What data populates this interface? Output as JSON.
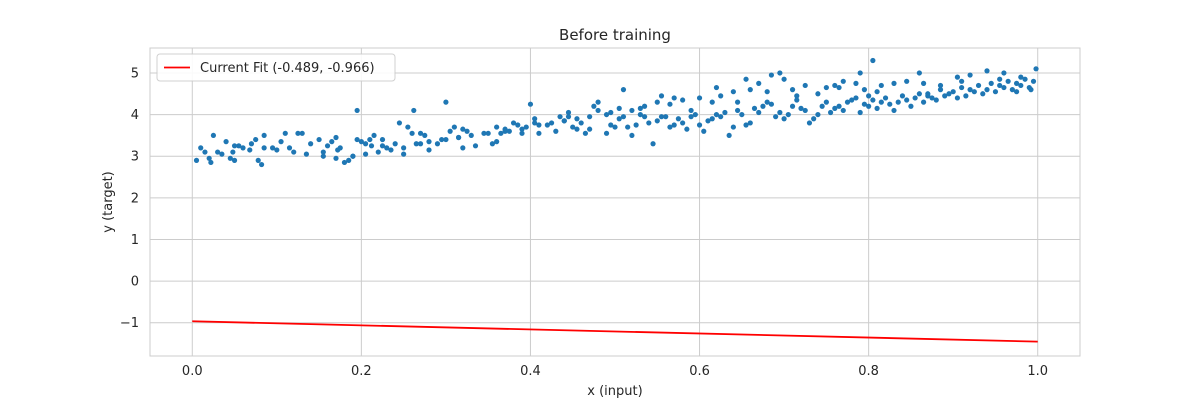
{
  "chart_data": {
    "type": "scatter",
    "title": "Before training",
    "xlabel": "x (input)",
    "ylabel": "y (target)",
    "xlim": [
      -0.05,
      1.05
    ],
    "ylim": [
      -1.8,
      5.6
    ],
    "xticks": [
      0.0,
      0.2,
      0.4,
      0.6,
      0.8,
      1.0
    ],
    "xtick_labels": [
      "0.0",
      "0.2",
      "0.4",
      "0.6",
      "0.8",
      "1.0"
    ],
    "yticks": [
      -1,
      0,
      1,
      2,
      3,
      4,
      5
    ],
    "ytick_labels": [
      "−1",
      "0",
      "1",
      "2",
      "3",
      "4",
      "5"
    ],
    "grid": true,
    "legend_position": "top-left",
    "scatter": {
      "color": "#1f77b4",
      "points": [
        [
          0.005,
          2.9
        ],
        [
          0.01,
          3.2
        ],
        [
          0.015,
          3.1
        ],
        [
          0.02,
          2.95
        ],
        [
          0.022,
          2.85
        ],
        [
          0.025,
          3.5
        ],
        [
          0.035,
          3.05
        ],
        [
          0.04,
          3.35
        ],
        [
          0.045,
          2.95
        ],
        [
          0.048,
          3.1
        ],
        [
          0.05,
          2.9
        ],
        [
          0.055,
          3.25
        ],
        [
          0.06,
          3.2
        ],
        [
          0.07,
          3.3
        ],
        [
          0.075,
          3.4
        ],
        [
          0.078,
          2.9
        ],
        [
          0.082,
          2.8
        ],
        [
          0.085,
          3.5
        ],
        [
          0.095,
          3.2
        ],
        [
          0.105,
          3.35
        ],
        [
          0.115,
          3.2
        ],
        [
          0.125,
          3.55
        ],
        [
          0.13,
          3.55
        ],
        [
          0.14,
          3.3
        ],
        [
          0.15,
          3.4
        ],
        [
          0.155,
          3.1
        ],
        [
          0.16,
          3.25
        ],
        [
          0.165,
          3.35
        ],
        [
          0.17,
          3.45
        ],
        [
          0.172,
          3.15
        ],
        [
          0.175,
          3.2
        ],
        [
          0.18,
          2.85
        ],
        [
          0.185,
          2.9
        ],
        [
          0.19,
          3.0
        ],
        [
          0.195,
          3.4
        ],
        [
          0.2,
          3.35
        ],
        [
          0.205,
          3.3
        ],
        [
          0.21,
          3.4
        ],
        [
          0.212,
          3.25
        ],
        [
          0.215,
          3.5
        ],
        [
          0.225,
          3.25
        ],
        [
          0.23,
          3.2
        ],
        [
          0.24,
          3.3
        ],
        [
          0.245,
          3.8
        ],
        [
          0.25,
          3.05
        ],
        [
          0.255,
          3.7
        ],
        [
          0.26,
          3.55
        ],
        [
          0.262,
          4.1
        ],
        [
          0.27,
          3.3
        ],
        [
          0.275,
          3.5
        ],
        [
          0.28,
          3.15
        ],
        [
          0.29,
          3.3
        ],
        [
          0.3,
          3.4
        ],
        [
          0.305,
          3.6
        ],
        [
          0.31,
          3.7
        ],
        [
          0.315,
          3.45
        ],
        [
          0.32,
          3.2
        ],
        [
          0.325,
          3.6
        ],
        [
          0.335,
          3.25
        ],
        [
          0.345,
          3.55
        ],
        [
          0.355,
          3.3
        ],
        [
          0.36,
          3.35
        ],
        [
          0.365,
          3.55
        ],
        [
          0.37,
          3.65
        ],
        [
          0.375,
          3.6
        ],
        [
          0.38,
          3.8
        ],
        [
          0.385,
          3.75
        ],
        [
          0.39,
          3.55
        ],
        [
          0.395,
          3.7
        ],
        [
          0.4,
          4.25
        ],
        [
          0.405,
          3.8
        ],
        [
          0.41,
          3.55
        ],
        [
          0.42,
          3.75
        ],
        [
          0.43,
          3.6
        ],
        [
          0.435,
          3.95
        ],
        [
          0.44,
          3.85
        ],
        [
          0.445,
          4.05
        ],
        [
          0.45,
          3.7
        ],
        [
          0.455,
          3.65
        ],
        [
          0.46,
          3.8
        ],
        [
          0.465,
          3.55
        ],
        [
          0.47,
          3.65
        ],
        [
          0.48,
          4.1
        ],
        [
          0.49,
          3.55
        ],
        [
          0.495,
          3.75
        ],
        [
          0.5,
          3.7
        ],
        [
          0.505,
          3.9
        ],
        [
          0.51,
          3.95
        ],
        [
          0.515,
          3.7
        ],
        [
          0.52,
          3.5
        ],
        [
          0.525,
          3.75
        ],
        [
          0.53,
          4.0
        ],
        [
          0.535,
          3.95
        ],
        [
          0.54,
          3.8
        ],
        [
          0.545,
          3.3
        ],
        [
          0.55,
          3.85
        ],
        [
          0.555,
          3.95
        ],
        [
          0.56,
          3.95
        ],
        [
          0.565,
          3.7
        ],
        [
          0.57,
          3.75
        ],
        [
          0.575,
          3.9
        ],
        [
          0.58,
          3.8
        ],
        [
          0.585,
          3.65
        ],
        [
          0.59,
          3.95
        ],
        [
          0.595,
          4.0
        ],
        [
          0.6,
          3.75
        ],
        [
          0.605,
          3.6
        ],
        [
          0.61,
          3.85
        ],
        [
          0.615,
          3.9
        ],
        [
          0.62,
          4.0
        ],
        [
          0.625,
          3.95
        ],
        [
          0.63,
          4.05
        ],
        [
          0.635,
          3.5
        ],
        [
          0.64,
          3.7
        ],
        [
          0.645,
          4.1
        ],
        [
          0.65,
          4.0
        ],
        [
          0.655,
          3.75
        ],
        [
          0.66,
          3.8
        ],
        [
          0.665,
          4.15
        ],
        [
          0.67,
          4.05
        ],
        [
          0.675,
          4.2
        ],
        [
          0.68,
          4.3
        ],
        [
          0.685,
          4.25
        ],
        [
          0.69,
          3.95
        ],
        [
          0.695,
          4.05
        ],
        [
          0.7,
          3.9
        ],
        [
          0.705,
          4.0
        ],
        [
          0.71,
          4.2
        ],
        [
          0.715,
          4.35
        ],
        [
          0.72,
          4.15
        ],
        [
          0.725,
          4.1
        ],
        [
          0.73,
          3.8
        ],
        [
          0.735,
          3.9
        ],
        [
          0.74,
          4.0
        ],
        [
          0.745,
          4.2
        ],
        [
          0.75,
          4.3
        ],
        [
          0.755,
          4.05
        ],
        [
          0.76,
          4.15
        ],
        [
          0.765,
          4.2
        ],
        [
          0.77,
          4.1
        ],
        [
          0.775,
          4.3
        ],
        [
          0.78,
          4.35
        ],
        [
          0.785,
          4.4
        ],
        [
          0.79,
          4.05
        ],
        [
          0.795,
          4.25
        ],
        [
          0.8,
          4.2
        ],
        [
          0.805,
          4.35
        ],
        [
          0.81,
          4.15
        ],
        [
          0.815,
          4.3
        ],
        [
          0.82,
          4.4
        ],
        [
          0.825,
          4.25
        ],
        [
          0.83,
          4.1
        ],
        [
          0.835,
          4.3
        ],
        [
          0.84,
          4.45
        ],
        [
          0.845,
          4.35
        ],
        [
          0.85,
          4.2
        ],
        [
          0.855,
          4.4
        ],
        [
          0.86,
          4.5
        ],
        [
          0.865,
          4.3
        ],
        [
          0.87,
          4.45
        ],
        [
          0.875,
          4.4
        ],
        [
          0.88,
          4.35
        ],
        [
          0.885,
          4.6
        ],
        [
          0.89,
          4.45
        ],
        [
          0.895,
          4.5
        ],
        [
          0.9,
          4.55
        ],
        [
          0.905,
          4.4
        ],
        [
          0.91,
          4.65
        ],
        [
          0.915,
          4.45
        ],
        [
          0.92,
          4.6
        ],
        [
          0.925,
          4.55
        ],
        [
          0.93,
          4.7
        ],
        [
          0.935,
          4.5
        ],
        [
          0.94,
          4.6
        ],
        [
          0.945,
          4.75
        ],
        [
          0.95,
          4.55
        ],
        [
          0.955,
          4.7
        ],
        [
          0.96,
          4.65
        ],
        [
          0.965,
          4.8
        ],
        [
          0.97,
          4.6
        ],
        [
          0.975,
          4.75
        ],
        [
          0.98,
          4.7
        ],
        [
          0.985,
          4.85
        ],
        [
          0.99,
          4.65
        ],
        [
          0.995,
          4.8
        ],
        [
          0.998,
          5.1
        ],
        [
          0.992,
          4.6
        ],
        [
          0.975,
          4.55
        ],
        [
          0.96,
          5.0
        ],
        [
          0.94,
          5.05
        ],
        [
          0.92,
          4.95
        ],
        [
          0.905,
          4.9
        ],
        [
          0.885,
          4.7
        ],
        [
          0.87,
          4.5
        ],
        [
          0.86,
          5.0
        ],
        [
          0.845,
          4.8
        ],
        [
          0.83,
          4.75
        ],
        [
          0.815,
          4.7
        ],
        [
          0.8,
          4.45
        ],
        [
          0.795,
          4.6
        ],
        [
          0.785,
          4.75
        ],
        [
          0.77,
          4.8
        ],
        [
          0.76,
          4.7
        ],
        [
          0.75,
          4.65
        ],
        [
          0.74,
          4.5
        ],
        [
          0.725,
          4.7
        ],
        [
          0.71,
          4.6
        ],
        [
          0.7,
          4.85
        ],
        [
          0.695,
          5.0
        ],
        [
          0.685,
          4.95
        ],
        [
          0.67,
          4.75
        ],
        [
          0.66,
          4.6
        ],
        [
          0.64,
          4.55
        ],
        [
          0.625,
          4.45
        ],
        [
          0.615,
          4.3
        ],
        [
          0.6,
          4.4
        ],
        [
          0.58,
          4.35
        ],
        [
          0.565,
          4.25
        ],
        [
          0.55,
          4.3
        ],
        [
          0.535,
          4.2
        ],
        [
          0.52,
          4.1
        ],
        [
          0.505,
          4.15
        ],
        [
          0.49,
          4.0
        ],
        [
          0.47,
          3.95
        ],
        [
          0.455,
          3.9
        ],
        [
          0.44,
          3.85
        ],
        [
          0.425,
          3.8
        ],
        [
          0.41,
          3.75
        ],
        [
          0.39,
          3.65
        ],
        [
          0.37,
          3.6
        ],
        [
          0.35,
          3.55
        ],
        [
          0.33,
          3.5
        ],
        [
          0.315,
          3.45
        ],
        [
          0.295,
          3.4
        ],
        [
          0.28,
          3.35
        ],
        [
          0.265,
          3.3
        ],
        [
          0.25,
          3.2
        ],
        [
          0.235,
          3.15
        ],
        [
          0.22,
          3.1
        ],
        [
          0.205,
          3.05
        ],
        [
          0.19,
          3.0
        ],
        [
          0.17,
          2.95
        ],
        [
          0.155,
          3.0
        ],
        [
          0.135,
          3.05
        ],
        [
          0.12,
          3.1
        ],
        [
          0.1,
          3.15
        ],
        [
          0.085,
          3.2
        ],
        [
          0.068,
          3.15
        ],
        [
          0.05,
          3.25
        ],
        [
          0.03,
          3.1
        ],
        [
          0.805,
          5.3
        ],
        [
          0.79,
          5.0
        ],
        [
          0.655,
          4.85
        ],
        [
          0.62,
          4.65
        ],
        [
          0.57,
          4.4
        ],
        [
          0.51,
          4.6
        ],
        [
          0.48,
          4.3
        ],
        [
          0.3,
          4.3
        ],
        [
          0.195,
          4.1
        ],
        [
          0.11,
          3.55
        ],
        [
          0.475,
          4.2
        ],
        [
          0.53,
          4.15
        ],
        [
          0.555,
          4.45
        ],
        [
          0.59,
          4.1
        ],
        [
          0.645,
          4.3
        ],
        [
          0.68,
          4.55
        ],
        [
          0.715,
          4.45
        ],
        [
          0.765,
          4.65
        ],
        [
          0.81,
          4.55
        ],
        [
          0.865,
          4.75
        ],
        [
          0.91,
          4.8
        ],
        [
          0.955,
          4.85
        ],
        [
          0.98,
          4.9
        ],
        [
          0.495,
          4.05
        ],
        [
          0.445,
          3.95
        ],
        [
          0.405,
          3.9
        ],
        [
          0.36,
          3.7
        ],
        [
          0.32,
          3.65
        ],
        [
          0.27,
          3.55
        ],
        [
          0.225,
          3.4
        ]
      ]
    },
    "fit_line": {
      "name": "Current Fit (-0.489, -0.966)",
      "color": "#ff0000",
      "slope": -0.489,
      "intercept": -0.966,
      "x_range": [
        0.0,
        1.0
      ]
    }
  }
}
